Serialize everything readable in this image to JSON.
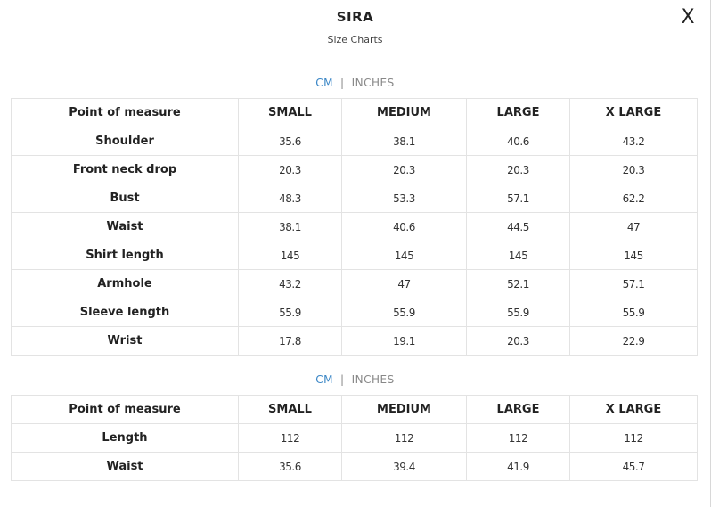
{
  "header": {
    "brand": "SIRA",
    "subtitle": "Size Charts",
    "close_label": "X"
  },
  "unit_toggle": {
    "cm": "CM",
    "separator": "|",
    "inches": "INCHES",
    "active_color": "#3a86c6",
    "inactive_color": "#888888"
  },
  "tables": [
    {
      "headers": [
        "Point of measure",
        "SMALL",
        "MEDIUM",
        "LARGE",
        "X LARGE"
      ],
      "rows": [
        [
          "Shoulder",
          "35.6",
          "38.1",
          "40.6",
          "43.2"
        ],
        [
          "Front neck drop",
          "20.3",
          "20.3",
          "20.3",
          "20.3"
        ],
        [
          "Bust",
          "48.3",
          "53.3",
          "57.1",
          "62.2"
        ],
        [
          "Waist",
          "38.1",
          "40.6",
          "44.5",
          "47"
        ],
        [
          "Shirt length",
          "145",
          "145",
          "145",
          "145"
        ],
        [
          "Armhole",
          "43.2",
          "47",
          "52.1",
          "57.1"
        ],
        [
          "Sleeve length",
          "55.9",
          "55.9",
          "55.9",
          "55.9"
        ],
        [
          "Wrist",
          "17.8",
          "19.1",
          "20.3",
          "22.9"
        ]
      ]
    },
    {
      "headers": [
        "Point of measure",
        "SMALL",
        "MEDIUM",
        "LARGE",
        "X LARGE"
      ],
      "rows": [
        [
          "Length",
          "112",
          "112",
          "112",
          "112"
        ],
        [
          "Waist",
          "35.6",
          "39.4",
          "41.9",
          "45.7"
        ]
      ]
    }
  ]
}
